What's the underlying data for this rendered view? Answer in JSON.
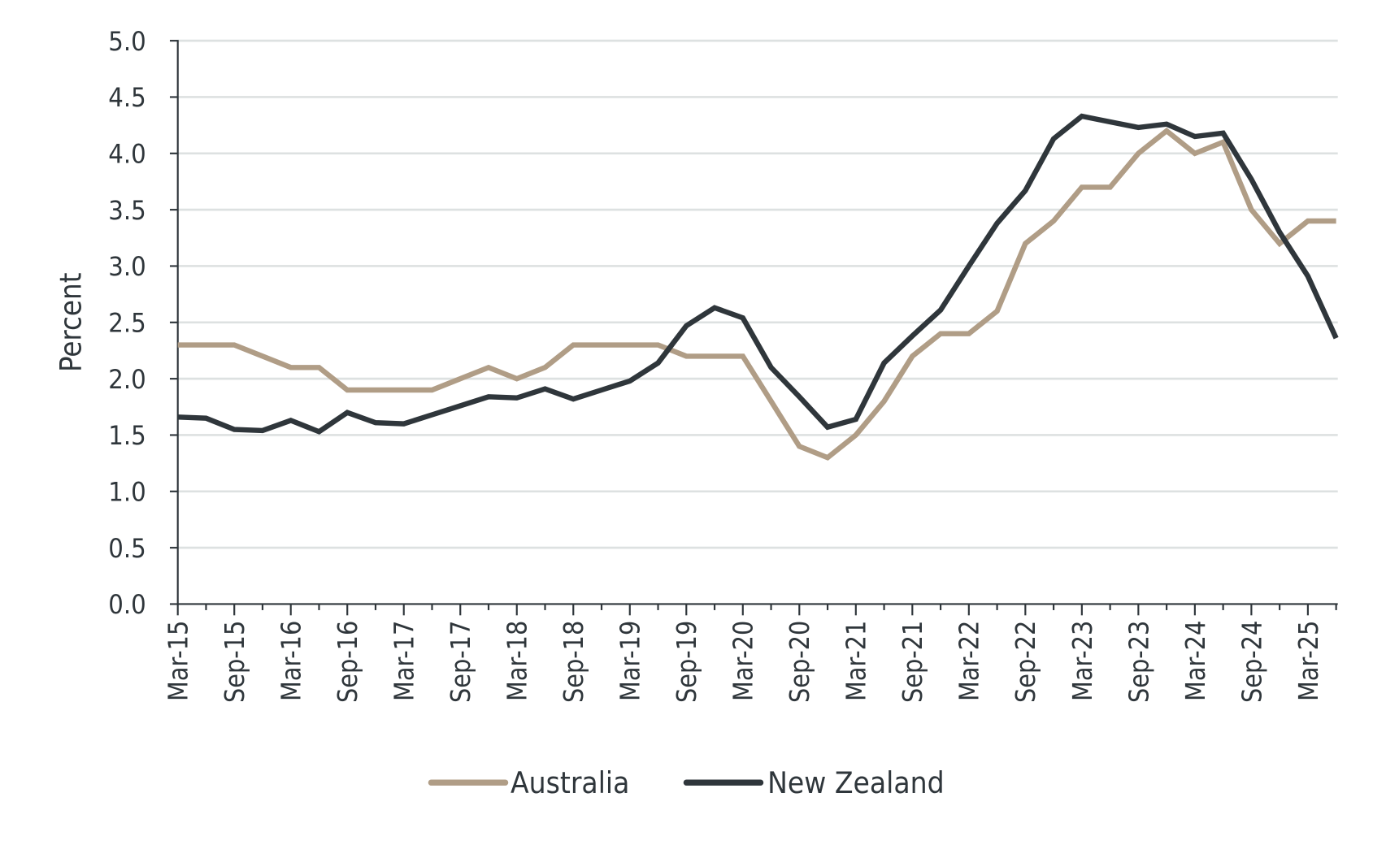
{
  "chart_data": {
    "type": "line",
    "title": "",
    "xlabel": "",
    "ylabel": "Percent",
    "ylim": [
      0,
      5
    ],
    "yticks": [
      "0.0",
      "0.5",
      "1.0",
      "1.5",
      "2.0",
      "2.5",
      "3.0",
      "3.5",
      "4.0",
      "4.5",
      "5.0"
    ],
    "grid": true,
    "legend_position": "bottom",
    "x": [
      "Mar-15",
      "Jun-15",
      "Sep-15",
      "Dec-15",
      "Mar-16",
      "Jun-16",
      "Sep-16",
      "Dec-16",
      "Mar-17",
      "Jun-17",
      "Sep-17",
      "Dec-17",
      "Mar-18",
      "Jun-18",
      "Sep-18",
      "Dec-18",
      "Mar-19",
      "Jun-19",
      "Sep-19",
      "Dec-19",
      "Mar-20",
      "Jun-20",
      "Sep-20",
      "Dec-20",
      "Mar-21",
      "Jun-21",
      "Sep-21",
      "Dec-21",
      "Mar-22",
      "Jun-22",
      "Sep-22",
      "Dec-22",
      "Mar-23",
      "Jun-23",
      "Sep-23",
      "Dec-23",
      "Mar-24",
      "Jun-24",
      "Sep-24",
      "Dec-24",
      "Mar-25",
      "Jun-25"
    ],
    "xtick_labels": [
      "Mar-15",
      "Sep-15",
      "Mar-16",
      "Sep-16",
      "Mar-17",
      "Sep-17",
      "Mar-18",
      "Sep-18",
      "Mar-19",
      "Sep-19",
      "Mar-20",
      "Sep-20",
      "Mar-21",
      "Sep-21",
      "Mar-22",
      "Sep-22",
      "Mar-23",
      "Sep-23",
      "Mar-24",
      "Sep-24",
      "Mar-25"
    ],
    "series": [
      {
        "name": "Australia",
        "color": "#b09d86",
        "values": [
          2.3,
          2.3,
          2.3,
          2.2,
          2.1,
          2.1,
          1.9,
          1.9,
          1.9,
          1.9,
          2.0,
          2.1,
          2.0,
          2.1,
          2.3,
          2.3,
          2.3,
          2.3,
          2.2,
          2.2,
          2.2,
          1.8,
          1.4,
          1.3,
          1.5,
          1.8,
          2.2,
          2.4,
          2.4,
          2.6,
          3.2,
          3.4,
          3.7,
          3.7,
          4.0,
          4.2,
          4.0,
          4.1,
          3.5,
          3.2,
          3.4,
          3.4
        ]
      },
      {
        "name": "New Zealand",
        "color": "#2f363b",
        "values": [
          1.66,
          1.65,
          1.55,
          1.54,
          1.63,
          1.53,
          1.7,
          1.61,
          1.6,
          1.68,
          1.76,
          1.84,
          1.83,
          1.91,
          1.82,
          1.9,
          1.98,
          2.14,
          2.47,
          2.63,
          2.54,
          2.1,
          1.84,
          1.57,
          1.64,
          2.14,
          2.38,
          2.61,
          3.0,
          3.38,
          3.67,
          4.13,
          4.33,
          4.28,
          4.23,
          4.26,
          4.15,
          4.18,
          3.77,
          3.3,
          2.91,
          2.36
        ]
      }
    ]
  }
}
